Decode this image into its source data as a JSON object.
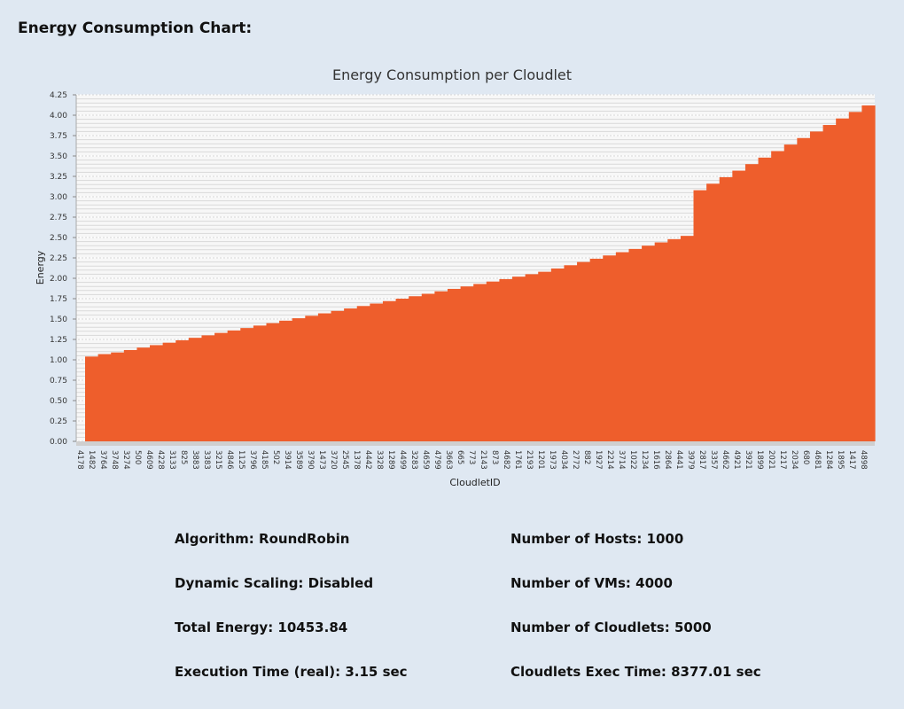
{
  "header": {
    "title": "Energy Consumption Chart:"
  },
  "chart_data": {
    "type": "bar",
    "title": "Energy Consumption per Cloudlet",
    "xlabel": "CloudletID",
    "ylabel": "Energy",
    "ylim": [
      0,
      4.25
    ],
    "yticks": [
      "0.00",
      "0.25",
      "0.50",
      "0.75",
      "1.00",
      "1.25",
      "1.50",
      "1.75",
      "2.00",
      "2.25",
      "2.50",
      "2.75",
      "3.00",
      "3.25",
      "3.50",
      "3.75",
      "4.00",
      "4.25"
    ],
    "x_tick_labels_visible": [
      "4178",
      "1482",
      "3764",
      "3748",
      "3274",
      "500",
      "4609",
      "4228",
      "3133",
      "825",
      "3883",
      "3383",
      "3215",
      "4846",
      "1125",
      "3796",
      "4185",
      "502",
      "3914",
      "3589",
      "3790",
      "1473",
      "3720",
      "2545",
      "1378",
      "4442",
      "3328",
      "1289",
      "4499",
      "3283",
      "4659",
      "4799",
      "3663",
      "665",
      "773",
      "2143",
      "873",
      "4682",
      "1761",
      "2193",
      "1201",
      "1973",
      "4034",
      "2772",
      "882",
      "1927",
      "2214",
      "3714",
      "1022",
      "1234",
      "1616",
      "2864",
      "4441",
      "3979",
      "2817",
      "3357",
      "4662",
      "4921",
      "3921",
      "1899",
      "2021",
      "1217",
      "2034",
      "680",
      "4681",
      "1284",
      "1895",
      "1417",
      "4898"
    ],
    "series_summary": "5000 cloudlets sorted by ascending energy",
    "values_sampled": [
      1.04,
      1.07,
      1.09,
      1.12,
      1.15,
      1.18,
      1.21,
      1.24,
      1.27,
      1.3,
      1.33,
      1.36,
      1.39,
      1.42,
      1.45,
      1.48,
      1.51,
      1.54,
      1.57,
      1.6,
      1.63,
      1.66,
      1.69,
      1.72,
      1.75,
      1.78,
      1.81,
      1.84,
      1.87,
      1.9,
      1.93,
      1.96,
      1.99,
      2.02,
      2.05,
      2.08,
      2.12,
      2.16,
      2.2,
      2.24,
      2.28,
      2.32,
      2.36,
      2.4,
      2.44,
      2.48,
      2.52,
      3.08,
      3.16,
      3.24,
      3.32,
      3.4,
      3.48,
      3.56,
      3.64,
      3.72,
      3.8,
      3.88,
      3.96,
      4.04,
      4.12
    ],
    "bar_color": "#ee5e2c",
    "grid": true,
    "legend": "none"
  },
  "stats": {
    "algorithm": "Algorithm: RoundRobin",
    "dynamic_scaling": "Dynamic Scaling: Disabled",
    "total_energy": "Total Energy: 10453.84",
    "execution_time": "Execution Time (real): 3.15 sec",
    "num_hosts": "Number of Hosts: 1000",
    "num_vms": "Number of VMs: 4000",
    "num_cloudlets": "Number of Cloudlets: 5000",
    "cloudlets_exec_time": "Cloudlets Exec Time: 8377.01 sec"
  }
}
